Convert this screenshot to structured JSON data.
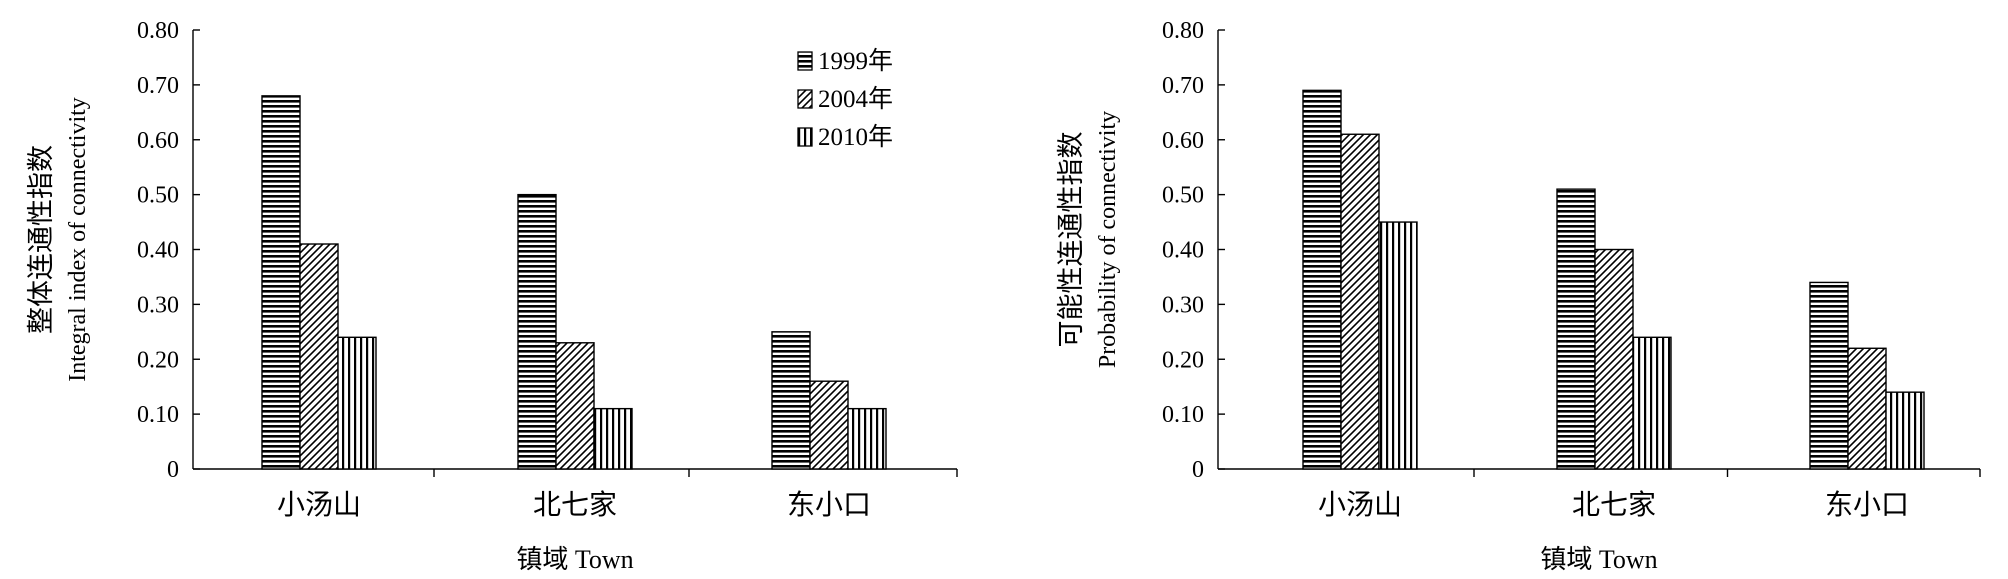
{
  "chart_data": [
    {
      "type": "bar",
      "categories": [
        "小汤山",
        "北七家",
        "东小口"
      ],
      "series": [
        {
          "name": "1999年",
          "values": [
            0.68,
            0.5,
            0.25
          ]
        },
        {
          "name": "2004年",
          "values": [
            0.41,
            0.23,
            0.16
          ]
        },
        {
          "name": "2010年",
          "values": [
            0.24,
            0.11,
            0.11
          ]
        }
      ],
      "ylabel_cn": "整体连通性指数",
      "ylabel_en": "Integral index of connectivity",
      "xlabel": "镇域 Town",
      "ylim": [
        0,
        0.8
      ],
      "yticks": [
        "0",
        "0.10",
        "0.20",
        "0.30",
        "0.40",
        "0.50",
        "0.60",
        "0.70",
        "0.80"
      ],
      "legend": "top-right",
      "grid": false
    },
    {
      "type": "bar",
      "categories": [
        "小汤山",
        "北七家",
        "东小口"
      ],
      "series": [
        {
          "name": "1999年",
          "values": [
            0.69,
            0.51,
            0.34
          ]
        },
        {
          "name": "2004年",
          "values": [
            0.61,
            0.4,
            0.22
          ]
        },
        {
          "name": "2010年",
          "values": [
            0.45,
            0.24,
            0.14
          ]
        }
      ],
      "ylabel_cn": "可能性连通性指数",
      "ylabel_en": "Probability of connectivity",
      "xlabel": "镇域 Town",
      "ylim": [
        0,
        0.8
      ],
      "yticks": [
        "0",
        "0.10",
        "0.20",
        "0.30",
        "0.40",
        "0.50",
        "0.60",
        "0.70",
        "0.80"
      ],
      "legend": "none",
      "grid": false
    }
  ]
}
